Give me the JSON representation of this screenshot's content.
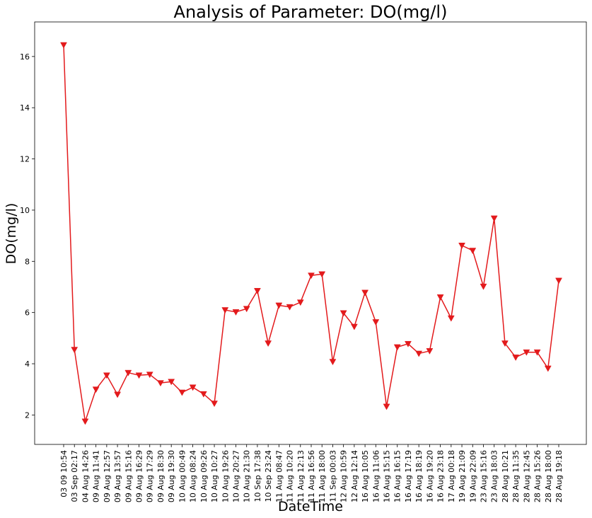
{
  "chart_data": {
    "type": "line",
    "title": "Analysis of Parameter: DO(mg/l)",
    "xlabel": "DateTime",
    "ylabel": "DO(mg/l)",
    "ylim": [
      0.85,
      17.35
    ],
    "yticks": [
      2,
      4,
      6,
      8,
      10,
      12,
      14,
      16
    ],
    "grid": false,
    "marker": "triangle-down",
    "line_color": "#e31a1c",
    "categories": [
      "03 09 10:54",
      "03 Sep 02:17",
      "04 Aug 14:26",
      "09 Aug 11:41",
      "09 Aug 12:57",
      "09 Aug 13:57",
      "09 Aug 15:16",
      "09 Aug 16:29",
      "09 Aug 17:29",
      "09 Aug 18:30",
      "09 Aug 19:30",
      "10 Aug 00:49",
      "10 Aug 08:24",
      "10 Aug 09:26",
      "10 Aug 10:27",
      "10 Aug 19:26",
      "10 Aug 20:27",
      "10 Aug 21:30",
      "10 Sep 17:38",
      "10 Sep 23:24",
      "11 Aug 08:47",
      "11 Aug 10:20",
      "11 Aug 12:13",
      "11 Aug 16:56",
      "11 Aug 18:00",
      "11 Sep 00:03",
      "12 Aug 10:59",
      "12 Aug 12:14",
      "16 Aug 10:05",
      "16 Aug 11:06",
      "16 Aug 15:15",
      "16 Aug 16:15",
      "16 Aug 17:19",
      "16 Aug 18:19",
      "16 Aug 19:20",
      "16 Aug 23:18",
      "17 Aug 00:18",
      "19 Aug 21:09",
      "19 Aug 22:09",
      "23 Aug 15:16",
      "23 Aug 18:03",
      "28 Aug 10:21",
      "28 Aug 11:35",
      "28 Aug 12:45",
      "28 Aug 15:26",
      "28 Aug 18:00",
      "28 Aug 19:18"
    ],
    "values": [
      16.45,
      4.55,
      1.75,
      3.0,
      3.55,
      2.8,
      3.65,
      3.55,
      3.58,
      3.25,
      3.3,
      2.88,
      3.08,
      2.82,
      2.45,
      6.1,
      6.02,
      6.15,
      6.85,
      4.8,
      6.28,
      6.22,
      6.4,
      7.45,
      7.5,
      4.08,
      5.98,
      5.45,
      6.78,
      5.63,
      2.33,
      4.65,
      4.78,
      4.4,
      4.5,
      6.6,
      5.78,
      8.62,
      8.42,
      7.02,
      9.68,
      4.8,
      4.25,
      4.45,
      4.45,
      3.82,
      7.25
    ]
  }
}
